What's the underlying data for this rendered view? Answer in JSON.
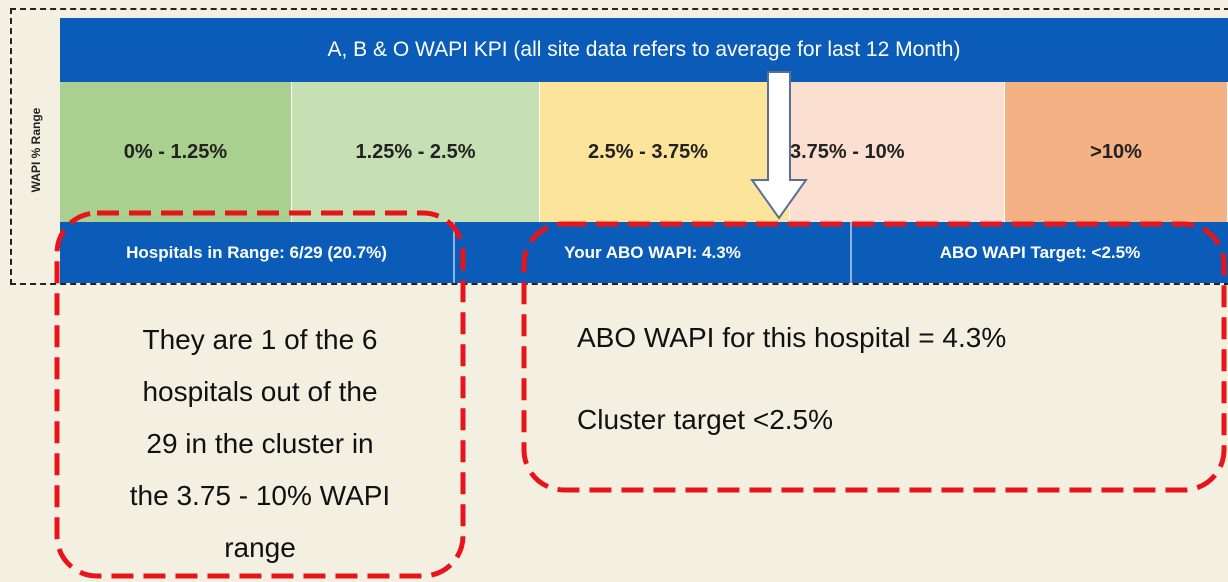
{
  "y_axis_label": "WAPI % Range",
  "header": {
    "title": "A, B & O WAPI KPI (all site data refers to average for last 12 Month)"
  },
  "ranges": [
    "0% - 1.25%",
    "1.25% - 2.5%",
    "2.5% - 3.75%",
    "3.75% - 10%",
    ">10%"
  ],
  "summary": [
    "Hospitals in Range: 6/29 (20.7%)",
    "Your ABO WAPI: 4.3%",
    "ABO WAPI Target: <2.5%"
  ],
  "notes": {
    "left": [
      "They are 1 of the 6",
      "hospitals out of the",
      "29 in the cluster in",
      "the 3.75 - 10% WAPI",
      "range"
    ],
    "right": [
      "ABO WAPI for this hospital = 4.3%",
      "Cluster target <2.5%"
    ]
  }
}
